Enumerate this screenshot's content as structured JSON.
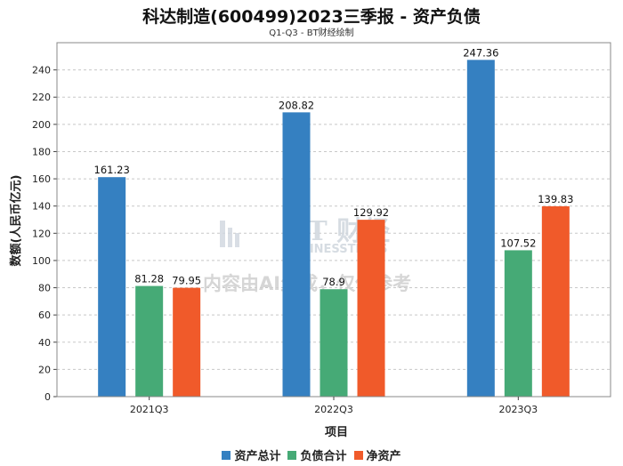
{
  "chart_data": {
    "type": "bar",
    "title": "科达制造(600499)2023三季报 - 资产负债",
    "subtitle": "Q1-Q3 - BT财经绘制",
    "xlabel": "项目",
    "ylabel": "数额(人民币亿元)",
    "ylim": [
      0,
      260
    ],
    "yticks": [
      0,
      20,
      40,
      60,
      80,
      100,
      120,
      140,
      160,
      180,
      200,
      220,
      240
    ],
    "grid": true,
    "legend_position": "bottom",
    "categories": [
      "2021Q3",
      "2022Q3",
      "2023Q3"
    ],
    "series": [
      {
        "name": "资产总计",
        "color": "#3580C1",
        "values": [
          161.23,
          208.82,
          247.36
        ],
        "labels": [
          "161.23",
          "208.82",
          "247.36"
        ]
      },
      {
        "name": "负债合计",
        "color": "#46AA76",
        "values": [
          81.28,
          78.9,
          107.52
        ],
        "labels": [
          "81.28",
          "78.9",
          "107.52"
        ]
      },
      {
        "name": "净资产",
        "color": "#F05A2A",
        "values": [
          79.95,
          129.92,
          139.83
        ],
        "labels": [
          "79.95",
          "129.92",
          "139.83"
        ]
      }
    ]
  },
  "watermark": {
    "logo_text": "BT 财经",
    "logo_sub": "BUSINESSTIMES",
    "notice": "内容由AI生成，仅供参考"
  }
}
